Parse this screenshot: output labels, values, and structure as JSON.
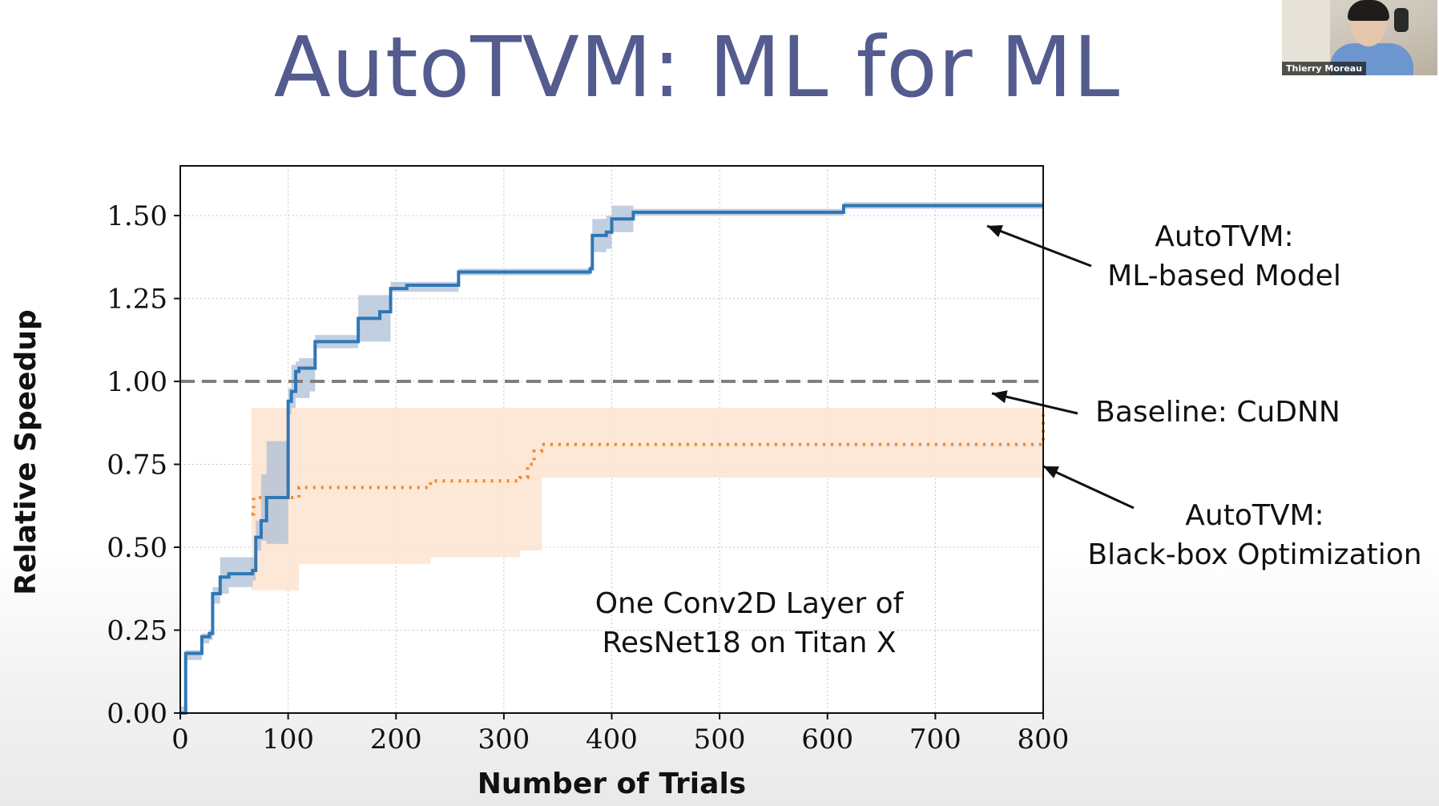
{
  "slide": {
    "title": "AutoTVM: ML for ML"
  },
  "webcam": {
    "participant_name": "Thierry Moreau"
  },
  "annotations": {
    "ml_model": [
      "AutoTVM:",
      "ML-based Model"
    ],
    "baseline": "Baseline: CuDNN",
    "blackbox": [
      "AutoTVM:",
      "Black-box Optimization"
    ],
    "inset": [
      "One Conv2D Layer of",
      "ResNet18 on Titan X"
    ]
  },
  "colors": {
    "title": "#545b8e",
    "ml_line": "#2f77b6",
    "ml_band": "#aebfd6",
    "bb_line": "#f08a2c",
    "bb_band": "#fde3cf",
    "baseline": "#7f7f7f"
  },
  "chart_data": {
    "type": "line",
    "xlabel": "Number of Trials",
    "ylabel": "Relative Speedup",
    "xlim": [
      0,
      800
    ],
    "ylim": [
      0,
      1.65
    ],
    "xticks": [
      "0",
      "100",
      "200",
      "300",
      "400",
      "500",
      "600",
      "700",
      "800"
    ],
    "yticks": [
      "0.00",
      "0.25",
      "0.50",
      "0.75",
      "1.00",
      "1.25",
      "1.50"
    ],
    "grid": true,
    "baseline": {
      "name": "Baseline: CuDNN",
      "value": 1.0,
      "style": "dashed"
    },
    "series": [
      {
        "name": "AutoTVM: ML-based Model",
        "style": "solid",
        "x": [
          0,
          5,
          15,
          20,
          27,
          30,
          37,
          45,
          55,
          67,
          70,
          75,
          80,
          95,
          100,
          103,
          107,
          110,
          120,
          125,
          140,
          160,
          165,
          185,
          195,
          210,
          250,
          258,
          300,
          340,
          380,
          382,
          395,
          400,
          420,
          440,
          500,
          600,
          615,
          700,
          800
        ],
        "y": [
          0,
          0.18,
          0.18,
          0.23,
          0.24,
          0.36,
          0.41,
          0.42,
          0.42,
          0.43,
          0.53,
          0.58,
          0.65,
          0.65,
          0.94,
          0.97,
          1.03,
          1.04,
          1.04,
          1.12,
          1.12,
          1.12,
          1.19,
          1.21,
          1.28,
          1.29,
          1.29,
          1.33,
          1.33,
          1.33,
          1.34,
          1.44,
          1.45,
          1.49,
          1.51,
          1.51,
          1.51,
          1.51,
          1.53,
          1.53,
          1.53
        ],
        "band_upper": [
          0.02,
          0.19,
          0.19,
          0.24,
          0.25,
          0.38,
          0.47,
          0.47,
          0.47,
          0.47,
          0.58,
          0.72,
          0.82,
          0.82,
          0.98,
          1.05,
          1.06,
          1.07,
          1.07,
          1.14,
          1.14,
          1.14,
          1.26,
          1.26,
          1.3,
          1.3,
          1.3,
          1.34,
          1.34,
          1.34,
          1.35,
          1.49,
          1.5,
          1.53,
          1.52,
          1.52,
          1.52,
          1.52,
          1.54,
          1.54,
          1.54
        ],
        "band_lower": [
          0,
          0.16,
          0.16,
          0.21,
          0.22,
          0.33,
          0.36,
          0.38,
          0.38,
          0.4,
          0.49,
          0.52,
          0.51,
          0.51,
          0.9,
          0.92,
          0.95,
          0.95,
          0.97,
          1.1,
          1.1,
          1.1,
          1.12,
          1.12,
          1.27,
          1.27,
          1.27,
          1.32,
          1.32,
          1.32,
          1.33,
          1.39,
          1.4,
          1.45,
          1.5,
          1.5,
          1.5,
          1.5,
          1.52,
          1.52,
          1.52
        ]
      },
      {
        "name": "AutoTVM: Black-box Optimization",
        "style": "dotted",
        "x": [
          66,
          68,
          72,
          80,
          105,
          110,
          140,
          200,
          225,
          232,
          260,
          300,
          315,
          322,
          328,
          335,
          360,
          400,
          500,
          600,
          700,
          795,
          800
        ],
        "y": [
          0.6,
          0.65,
          0.65,
          0.65,
          0.65,
          0.68,
          0.68,
          0.68,
          0.68,
          0.7,
          0.7,
          0.7,
          0.71,
          0.75,
          0.79,
          0.81,
          0.81,
          0.81,
          0.81,
          0.81,
          0.81,
          0.81,
          0.9
        ],
        "band_upper": [
          0.92,
          0.92,
          0.92,
          0.92,
          0.92,
          0.92,
          0.92,
          0.92,
          0.92,
          0.92,
          0.92,
          0.92,
          0.92,
          0.92,
          0.92,
          0.92,
          0.92,
          0.92,
          0.92,
          0.92,
          0.92,
          0.92,
          0.92
        ],
        "band_lower": [
          0.37,
          0.37,
          0.37,
          0.37,
          0.37,
          0.45,
          0.45,
          0.45,
          0.45,
          0.47,
          0.47,
          0.47,
          0.49,
          0.49,
          0.49,
          0.71,
          0.71,
          0.71,
          0.71,
          0.71,
          0.71,
          0.71,
          0.71
        ]
      }
    ]
  }
}
